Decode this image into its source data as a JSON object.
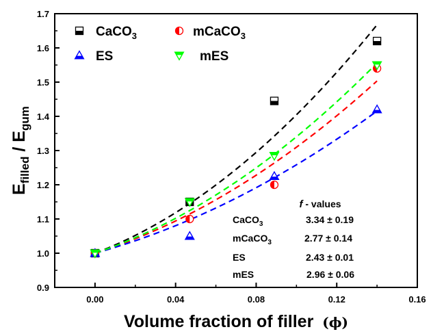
{
  "chart_data": {
    "type": "scatter",
    "xlabel": "Volume fraction of filler",
    "xlabel_symbol": "(ϕ)",
    "ylabel": {
      "base1": "E",
      "sub1": "filled",
      "sep": " / ",
      "base2": "E",
      "sub2": "gum"
    },
    "xlim": [
      -0.02,
      0.16
    ],
    "ylim": [
      0.9,
      1.7
    ],
    "xticks": [
      0.0,
      0.04,
      0.08,
      0.12,
      0.16
    ],
    "xtick_labels": [
      "0.00",
      "0.04",
      "0.08",
      "0.12",
      "0.16"
    ],
    "yticks": [
      0.9,
      1.0,
      1.1,
      1.2,
      1.3,
      1.4,
      1.5,
      1.6,
      1.7
    ],
    "ytick_labels": [
      "0.9",
      "1.0",
      "1.1",
      "1.2",
      "1.3",
      "1.4",
      "1.5",
      "1.6",
      "1.7"
    ],
    "legend_position": "top-left",
    "series": [
      {
        "name": "CaCO3",
        "name_base": "CaCO",
        "name_sub": "3",
        "marker": "square-half",
        "color": "#000000",
        "x": [
          0.0,
          0.047,
          0.089,
          0.14
        ],
        "y": [
          1.0,
          1.15,
          1.445,
          1.62
        ],
        "f": 3.34
      },
      {
        "name": "mCaCO3",
        "name_base": "mCaCO",
        "name_sub": "3",
        "marker": "circle-half",
        "color": "#ff0000",
        "x": [
          0.0,
          0.047,
          0.089,
          0.14
        ],
        "y": [
          1.0,
          1.1,
          1.2,
          1.54
        ],
        "f": 2.77
      },
      {
        "name": "ES",
        "name_base": "ES",
        "name_sub": "",
        "marker": "triangle-up-half",
        "color": "#0000ff",
        "x": [
          0.0,
          0.047,
          0.089,
          0.14
        ],
        "y": [
          1.0,
          1.05,
          1.225,
          1.42
        ],
        "f": 2.43
      },
      {
        "name": "mES",
        "name_base": "mES",
        "name_sub": "",
        "marker": "triangle-down-half",
        "color": "#00ff00",
        "x": [
          0.0,
          0.047,
          0.089,
          0.14
        ],
        "y": [
          1.0,
          1.15,
          1.285,
          1.55
        ],
        "f": 2.96
      }
    ],
    "fit_curve_style": "dashed",
    "fit_x_range": [
      0.0,
      0.14
    ],
    "f_values_table": {
      "title_italic": "f",
      "title_rest": " - values",
      "rows": [
        {
          "label_base": "CaCO",
          "label_sub": "3",
          "value": "3.34 ± 0.19"
        },
        {
          "label_base": "mCaCO",
          "label_sub": "3",
          "value": "2.77 ± 0.14"
        },
        {
          "label_base": "ES",
          "label_sub": "",
          "value": "2.43 ± 0.01"
        },
        {
          "label_base": "mES",
          "label_sub": "",
          "value": "2.96 ± 0.06"
        }
      ]
    }
  }
}
